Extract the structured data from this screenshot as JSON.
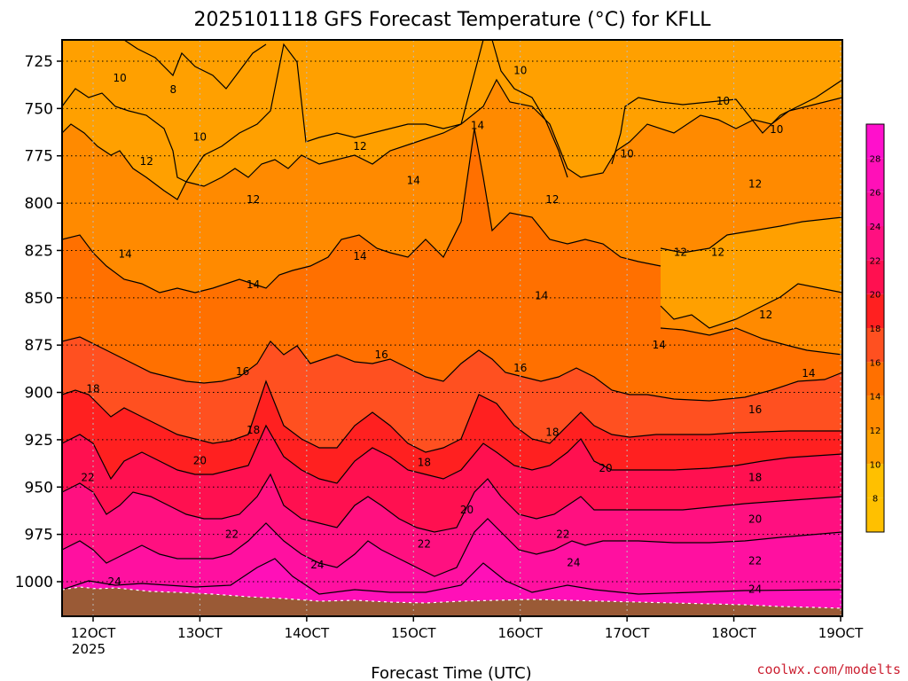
{
  "chart_data": {
    "type": "heatmap",
    "title": "2025101118 GFS Forecast Temperature (°C) for KFLL",
    "xlabel": "Forecast Time (UTC)",
    "ylabel": "",
    "y_axis": {
      "ticks": [
        "725",
        "750",
        "775",
        "800",
        "825",
        "850",
        "875",
        "900",
        "925",
        "950",
        "975",
        "1000"
      ],
      "range": [
        712,
        1030
      ],
      "inverted": true
    },
    "x_axis": {
      "ticks": [
        "12OCT",
        "13OCT",
        "14OCT",
        "15OCT",
        "16OCT",
        "17OCT",
        "18OCT",
        "19OCT"
      ],
      "year_label": "2025",
      "range": [
        11.8,
        19.25
      ]
    },
    "grid": true,
    "colorbar": {
      "placement": "right",
      "levels": [
        8,
        10,
        12,
        14,
        16,
        18,
        20,
        22,
        24,
        26,
        28
      ],
      "labels": [
        "8",
        "10",
        "12",
        "14",
        "16",
        "18",
        "20",
        "22",
        "24",
        "26",
        "28"
      ]
    },
    "contour_labels": [
      {
        "text": "8",
        "x": 12.75,
        "p": 740
      },
      {
        "text": "10",
        "x": 12.25,
        "p": 734
      },
      {
        "text": "10",
        "x": 13.0,
        "p": 765
      },
      {
        "text": "12",
        "x": 12.5,
        "p": 778
      },
      {
        "text": "12",
        "x": 13.5,
        "p": 798
      },
      {
        "text": "12",
        "x": 14.5,
        "p": 770
      },
      {
        "text": "14",
        "x": 12.3,
        "p": 827
      },
      {
        "text": "14",
        "x": 13.5,
        "p": 843
      },
      {
        "text": "14",
        "x": 14.5,
        "p": 828
      },
      {
        "text": "14",
        "x": 15.0,
        "p": 788
      },
      {
        "text": "14",
        "x": 15.6,
        "p": 759
      },
      {
        "text": "10",
        "x": 16.0,
        "p": 730
      },
      {
        "text": "12",
        "x": 16.3,
        "p": 798
      },
      {
        "text": "14",
        "x": 16.2,
        "p": 849
      },
      {
        "text": "10",
        "x": 17.0,
        "p": 774
      },
      {
        "text": "10",
        "x": 17.9,
        "p": 746
      },
      {
        "text": "10",
        "x": 18.4,
        "p": 761
      },
      {
        "text": "12",
        "x": 18.2,
        "p": 790
      },
      {
        "text": "12",
        "x": 17.5,
        "p": 826
      },
      {
        "text": "12",
        "x": 17.85,
        "p": 826
      },
      {
        "text": "12",
        "x": 18.3,
        "p": 859
      },
      {
        "text": "14",
        "x": 17.3,
        "p": 875
      },
      {
        "text": "14",
        "x": 18.7,
        "p": 890
      },
      {
        "text": "16",
        "x": 13.4,
        "p": 889
      },
      {
        "text": "16",
        "x": 14.7,
        "p": 880
      },
      {
        "text": "16",
        "x": 16.0,
        "p": 887
      },
      {
        "text": "16",
        "x": 18.2,
        "p": 909
      },
      {
        "text": "18",
        "x": 12.0,
        "p": 898
      },
      {
        "text": "18",
        "x": 13.5,
        "p": 920
      },
      {
        "text": "18",
        "x": 15.1,
        "p": 937
      },
      {
        "text": "18",
        "x": 16.3,
        "p": 921
      },
      {
        "text": "18",
        "x": 18.2,
        "p": 945
      },
      {
        "text": "20",
        "x": 13.0,
        "p": 936
      },
      {
        "text": "20",
        "x": 15.5,
        "p": 962
      },
      {
        "text": "20",
        "x": 16.8,
        "p": 940
      },
      {
        "text": "20",
        "x": 18.2,
        "p": 967
      },
      {
        "text": "22",
        "x": 11.95,
        "p": 945
      },
      {
        "text": "22",
        "x": 13.3,
        "p": 975
      },
      {
        "text": "22",
        "x": 15.1,
        "p": 980
      },
      {
        "text": "22",
        "x": 16.4,
        "p": 975
      },
      {
        "text": "22",
        "x": 18.2,
        "p": 989
      },
      {
        "text": "24",
        "x": 12.2,
        "p": 1000
      },
      {
        "text": "24",
        "x": 14.1,
        "p": 991
      },
      {
        "text": "24",
        "x": 16.5,
        "p": 990
      },
      {
        "text": "24",
        "x": 18.2,
        "p": 1004
      }
    ]
  },
  "footer": {
    "credit": "coolwx.com/modelts"
  },
  "colors": {
    "band_8": "#ffc000",
    "band_10": "#ffa000",
    "band_12": "#ff8a00",
    "band_14": "#ff7000",
    "band_16": "#ff5020",
    "band_18": "#ff2020",
    "band_20": "#ff1050",
    "band_22": "#ff1080",
    "band_24": "#ff10a0",
    "band_26": "#ff10b8",
    "band_28": "#ff10cc",
    "ground": "#9a5a36",
    "credit": "#cc2233"
  }
}
